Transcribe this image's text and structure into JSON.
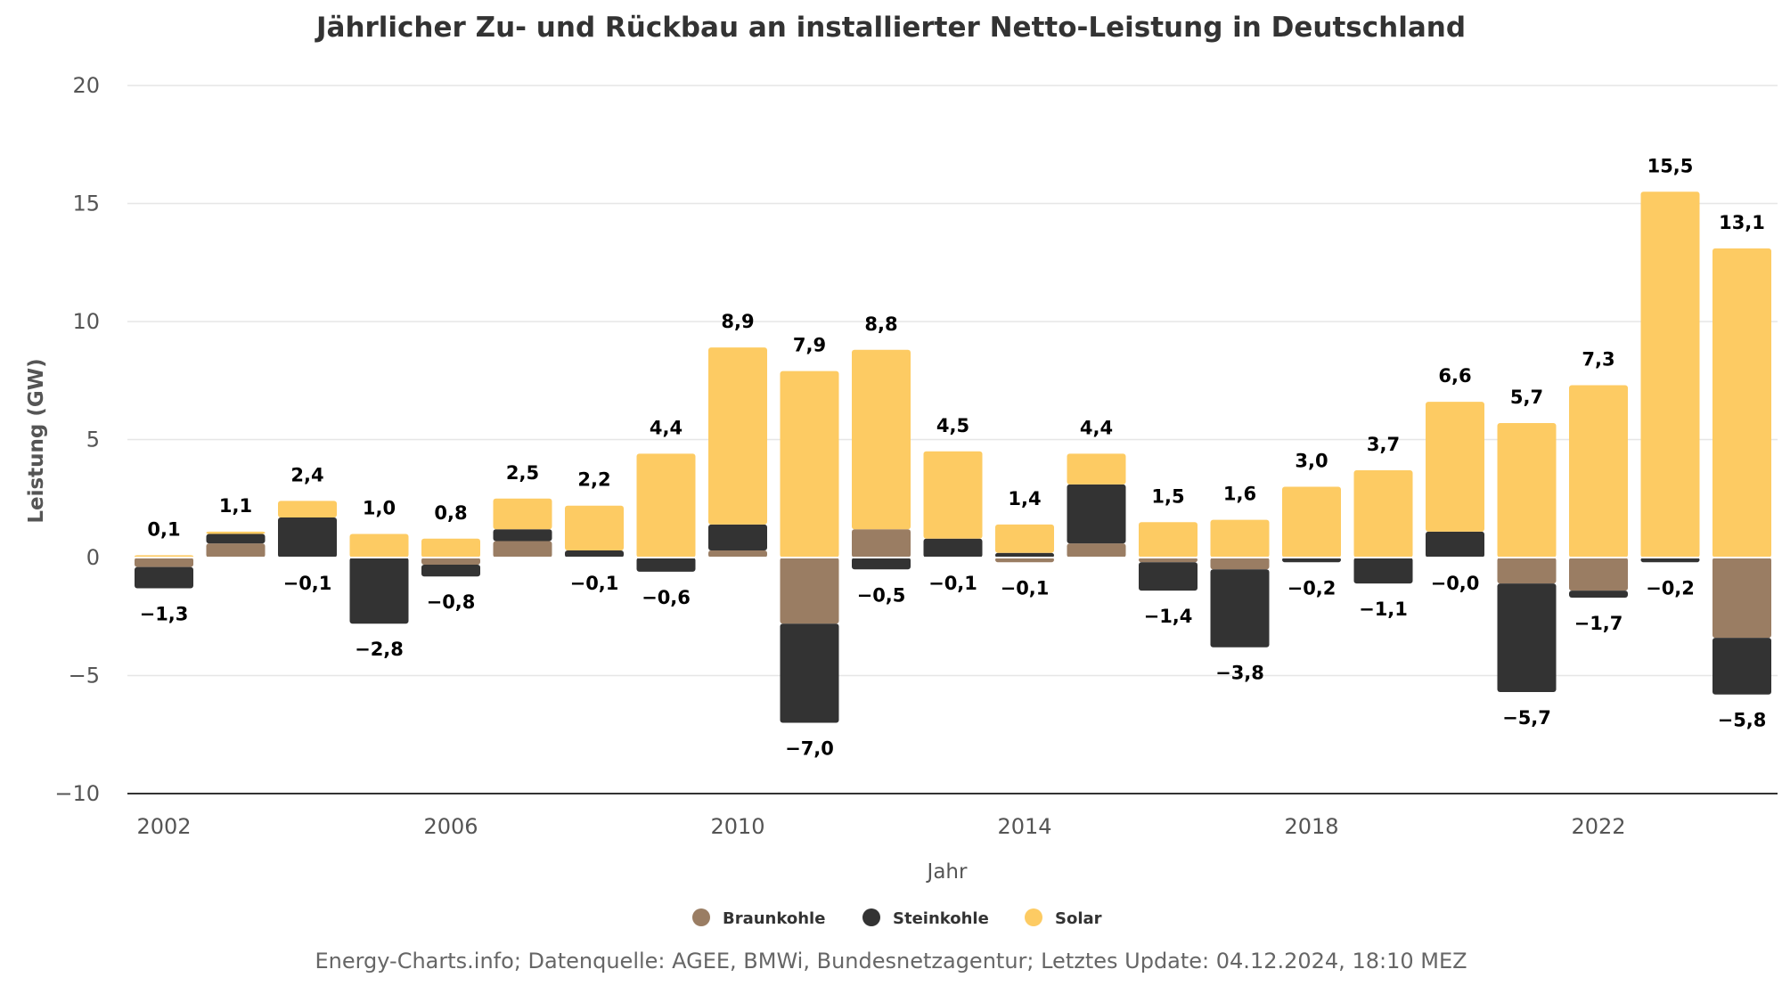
{
  "chart_data": {
    "type": "bar",
    "stacked": true,
    "title": "Jährlicher Zu- und Rückbau an installierter Netto-Leistung in Deutschland",
    "xlabel": "Jahr",
    "ylabel": "Leistung (GW)",
    "ylim": [
      -10,
      20
    ],
    "yticks": [
      20,
      15,
      10,
      5,
      0,
      -5,
      -10
    ],
    "ytick_labels": [
      "20",
      "15",
      "10",
      "5",
      "0",
      "−5",
      "−10"
    ],
    "categories": [
      2002,
      2003,
      2004,
      2005,
      2006,
      2007,
      2008,
      2009,
      2010,
      2011,
      2012,
      2013,
      2014,
      2015,
      2016,
      2017,
      2018,
      2019,
      2020,
      2021,
      2022,
      2023,
      2024
    ],
    "xtick_labels": [
      "2002",
      "2006",
      "2010",
      "2014",
      "2018",
      "2022"
    ],
    "grid": true,
    "legend_position": "bottom-center",
    "series": [
      {
        "name": "Braunkohle",
        "color": "#9a7d63",
        "values": [
          -0.4,
          0.6,
          0.0,
          0.0,
          -0.3,
          0.7,
          0.0,
          0.0,
          0.3,
          -2.8,
          1.2,
          0.0,
          -0.2,
          0.6,
          -0.2,
          -0.5,
          0.0,
          0.0,
          0.0,
          -1.1,
          -1.4,
          0.0,
          -3.4
        ]
      },
      {
        "name": "Steinkohle",
        "color": "#333333",
        "values": [
          -0.9,
          0.4,
          1.7,
          -2.8,
          -0.5,
          0.5,
          0.3,
          -0.6,
          1.1,
          -4.2,
          -0.5,
          0.8,
          0.2,
          2.5,
          -1.2,
          -3.3,
          -0.2,
          -1.1,
          1.1,
          -4.6,
          -0.3,
          -0.2,
          -2.4
        ]
      },
      {
        "name": "Solar",
        "color": "#fdcb63",
        "values": [
          0.1,
          0.1,
          0.7,
          1.0,
          0.8,
          1.3,
          1.9,
          4.4,
          7.5,
          7.9,
          7.6,
          3.7,
          1.2,
          1.3,
          1.5,
          1.6,
          3.0,
          3.7,
          5.5,
          5.7,
          7.3,
          15.5,
          13.1
        ]
      }
    ],
    "positive_totals": [
      "0,1",
      "1,1",
      "2,4",
      "1,0",
      "0,8",
      "2,5",
      "2,2",
      "4,4",
      "8,9",
      "7,9",
      "8,8",
      "4,5",
      "1,4",
      "4,4",
      "1,5",
      "1,6",
      "3,0",
      "3,7",
      "6,6",
      "5,7",
      "7,3",
      "15,5",
      "13,1"
    ],
    "negative_totals": [
      "−1,3",
      null,
      "−0,1",
      "−2,8",
      "−0,8",
      null,
      "−0,1",
      "−0,6",
      null,
      "−7,0",
      "−0,5",
      "−0,1",
      "−0,1",
      null,
      "−1,4",
      "−3,8",
      "−0,2",
      "−1,1",
      "−0,0",
      "−5,7",
      "−1,7",
      "−0,2",
      "−5,8"
    ]
  },
  "source_credit": "Energy-Charts.info; Datenquelle: AGEE, BMWi, Bundesnetzagentur; Letztes Update: 04.12.2024, 18:10 MEZ"
}
